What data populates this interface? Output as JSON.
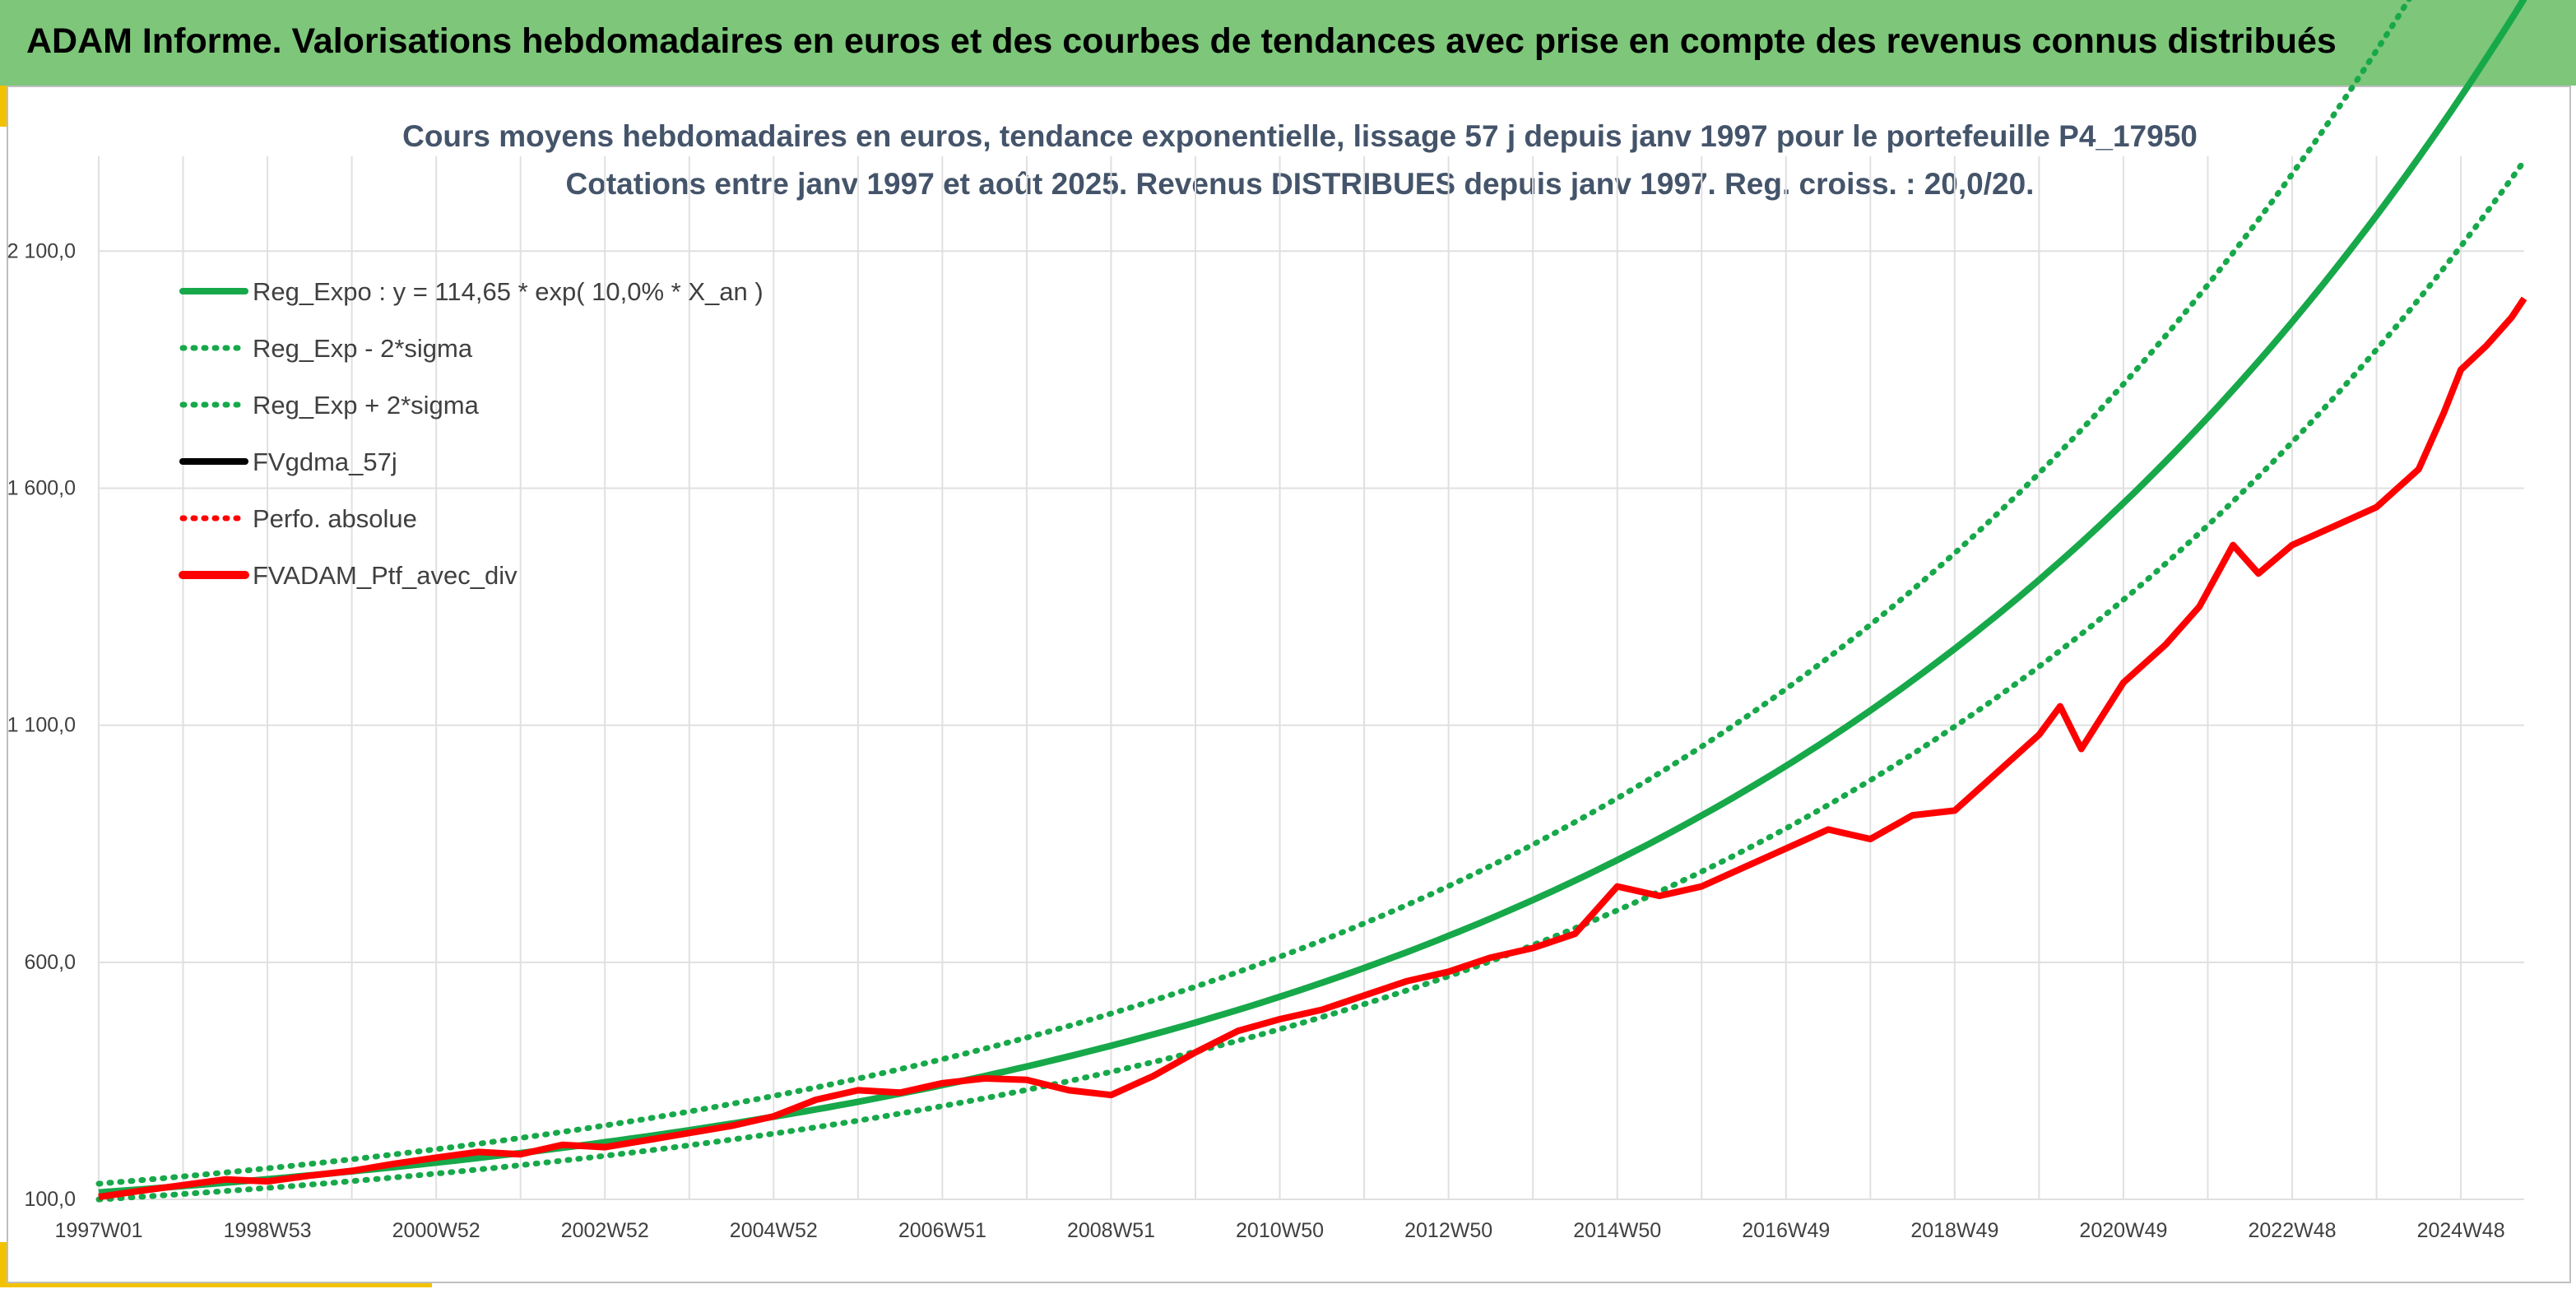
{
  "header": {
    "title": "ADAM Informe. Valorisations hebdomadaires en euros et des courbes de tendances avec prise en compte des revenus connus distribués"
  },
  "colors": {
    "banner": "#7dc67a",
    "accent": "#f2c200",
    "trend": "#17a84a",
    "smoothed": "#000000",
    "portfolio": "#ff0000"
  },
  "chart_data": {
    "type": "line",
    "title": "Cours moyens hebdomadaires en euros, tendance exponentielle, lissage 57 j depuis janv 1997 pour le portefeuille P4_17950",
    "subtitle": "Cotations entre janv 1997 et août 2025. Revenus DISTRIBUES depuis janv 1997. Reg. croiss. : 20,0/20.",
    "x_tick_labels": [
      "1997W01",
      "1998W53",
      "2000W52",
      "2002W52",
      "2004W52",
      "2006W51",
      "2008W51",
      "2010W50",
      "2012W50",
      "2014W50",
      "2016W49",
      "2018W49",
      "2020W49",
      "2022W48",
      "2024W48"
    ],
    "x_tick_years": [
      1997.0,
      1999.0,
      2001.0,
      2003.0,
      2005.0,
      2007.0,
      2009.0,
      2011.0,
      2013.0,
      2015.0,
      2017.0,
      2019.0,
      2021.0,
      2023.0,
      2025.0
    ],
    "x_range": [
      1997.0,
      2025.75
    ],
    "y_ticks": [
      100,
      600,
      1100,
      1600,
      2100
    ],
    "y_tick_labels": [
      "100,0",
      "600,0",
      "1 100,0",
      "1 600,0",
      "2 100,0"
    ],
    "ylim": [
      100,
      2300
    ],
    "grid": true,
    "legend_position": "top-left",
    "trend_model": {
      "a": 114.65,
      "growth": 0.1,
      "lower_factor": 0.87,
      "upper_factor": 1.16
    },
    "series": [
      {
        "name": "Reg_Expo : y = 114,65 * exp( 10,0% *  X_an )",
        "style": "trend",
        "color": "#17a84a"
      },
      {
        "name": "Reg_Exp - 2*sigma",
        "style": "lower-band",
        "color": "#17a84a"
      },
      {
        "name": "Reg_Exp + 2*sigma",
        "style": "upper-band",
        "color": "#17a84a"
      },
      {
        "name": "FVgdma_57j",
        "style": "smoothed",
        "color": "#000000"
      },
      {
        "name": "Perfo. absolue",
        "style": "dotted",
        "color": "#ff0000"
      },
      {
        "name": "FVADAM_Ptf_avec_div",
        "style": "portfolio",
        "color": "#ff0000",
        "x": [
          1997.0,
          1997.5,
          1998.0,
          1998.5,
          1999.0,
          1999.5,
          2000.0,
          2000.5,
          2001.0,
          2001.5,
          2002.0,
          2002.5,
          2003.0,
          2003.5,
          2004.0,
          2004.5,
          2005.0,
          2005.5,
          2006.0,
          2006.5,
          2007.0,
          2007.5,
          2008.0,
          2008.5,
          2009.0,
          2009.5,
          2010.0,
          2010.5,
          2011.0,
          2011.5,
          2012.0,
          2012.5,
          2013.0,
          2013.5,
          2014.0,
          2014.5,
          2015.0,
          2015.5,
          2016.0,
          2016.5,
          2017.0,
          2017.5,
          2018.0,
          2018.5,
          2019.0,
          2019.5,
          2020.0,
          2020.25,
          2020.5,
          2021.0,
          2021.5,
          2021.9,
          2022.3,
          2022.6,
          2023.0,
          2023.5,
          2024.0,
          2024.5,
          2024.8,
          2025.0,
          2025.3,
          2025.6,
          2025.75
        ],
        "y": [
          105,
          118,
          130,
          142,
          138,
          150,
          160,
          175,
          188,
          200,
          195,
          215,
          210,
          225,
          240,
          255,
          275,
          310,
          330,
          325,
          345,
          355,
          352,
          330,
          320,
          360,
          410,
          455,
          480,
          500,
          530,
          560,
          580,
          610,
          630,
          660,
          760,
          740,
          760,
          800,
          840,
          880,
          860,
          910,
          920,
          1000,
          1080,
          1140,
          1050,
          1190,
          1270,
          1350,
          1480,
          1420,
          1480,
          1520,
          1560,
          1640,
          1760,
          1850,
          1900,
          1960,
          2000
        ]
      }
    ]
  }
}
